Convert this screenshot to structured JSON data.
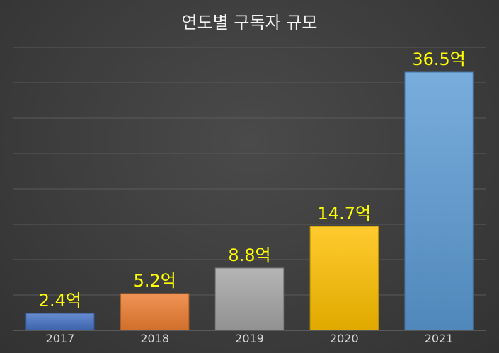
{
  "chart_data": {
    "type": "bar",
    "title": "연도별 구독자 규모",
    "categories": [
      "2017",
      "2018",
      "2019",
      "2020",
      "2021"
    ],
    "values": [
      2.4,
      5.2,
      8.8,
      14.7,
      36.5
    ],
    "data_labels": [
      "2.4억",
      "5.2억",
      "8.8억",
      "14.7억",
      "36.5억"
    ],
    "bar_colors": [
      "#4472C4",
      "#ED7D31",
      "#A5A5A5",
      "#FFC000",
      "#5B9BD5"
    ],
    "label_color": "#FFFF00",
    "ylim": [
      0,
      40
    ],
    "grid": true,
    "legend": "none",
    "xlabel": "",
    "ylabel": ""
  }
}
